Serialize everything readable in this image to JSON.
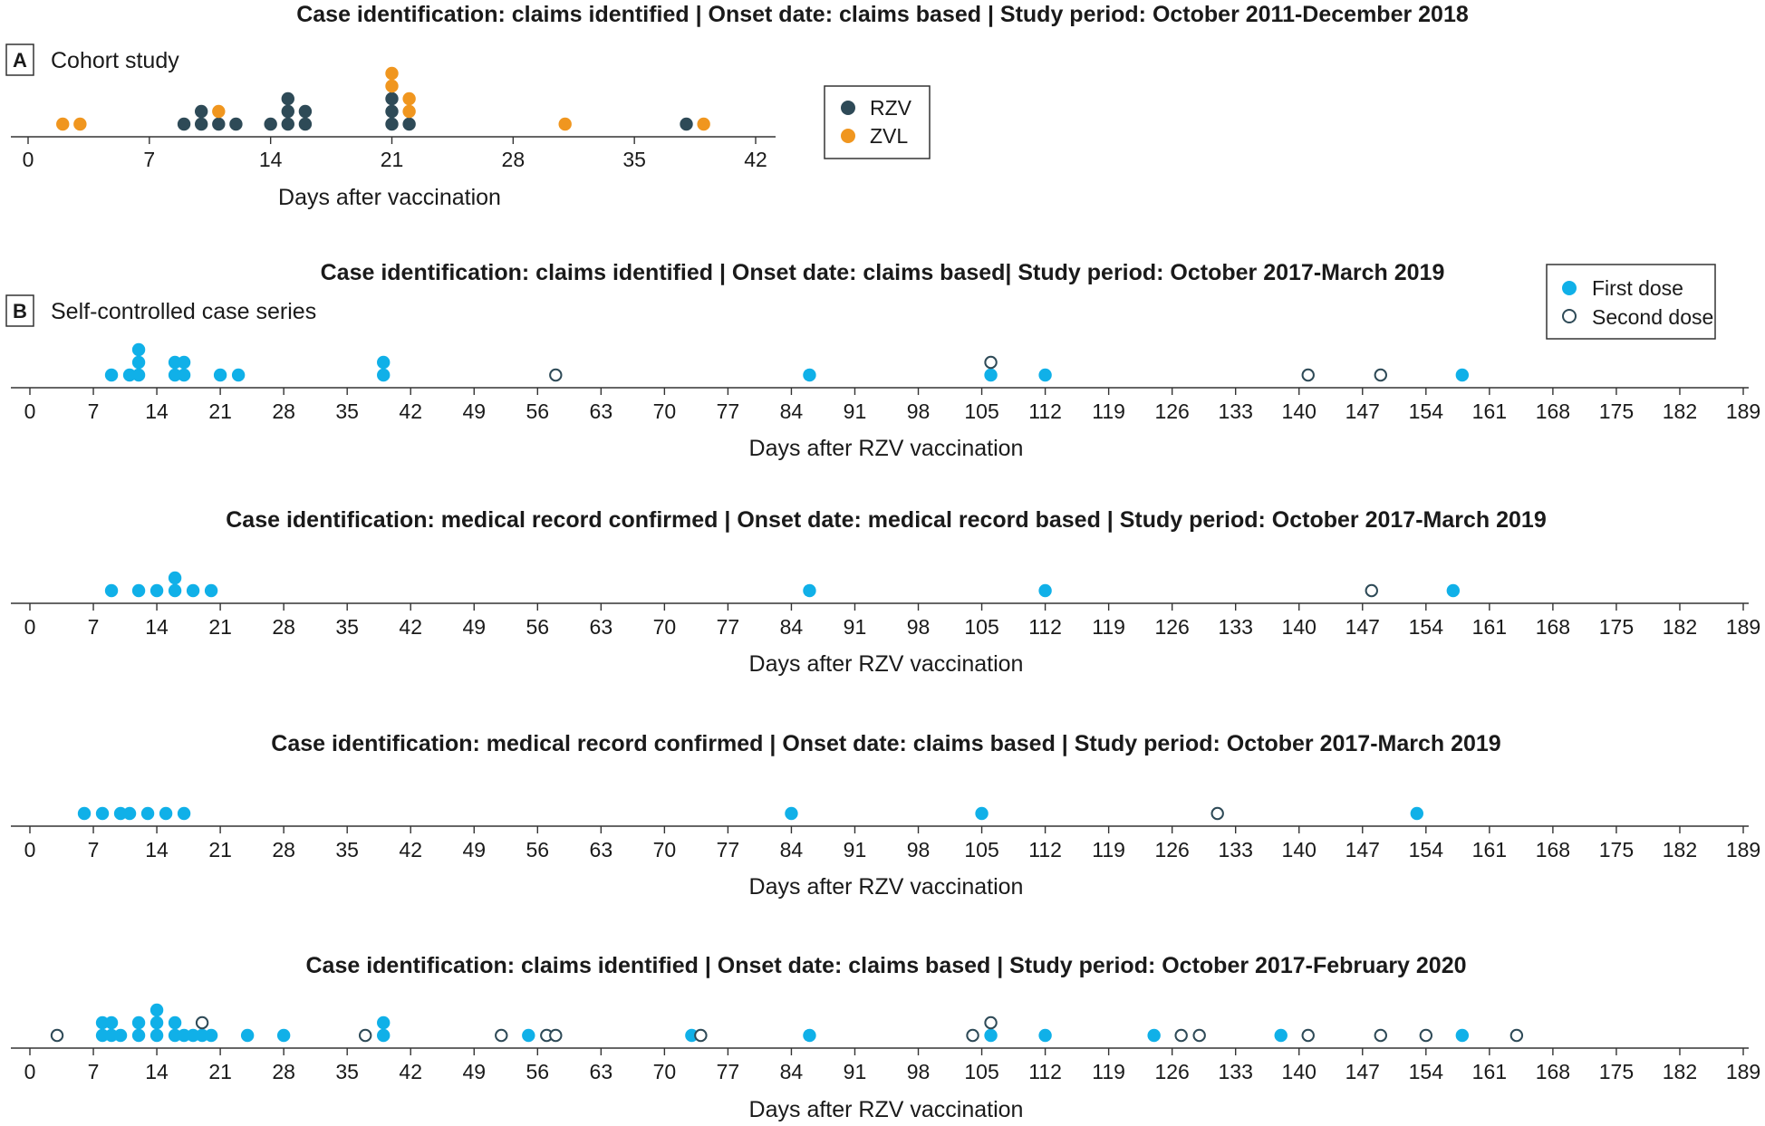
{
  "figure": {
    "colors": {
      "RZV": "#2e4a57",
      "ZVL": "#f0961f",
      "first_dose": "#10b0e8",
      "second_dose_stroke": "#2e4a57",
      "axis": "#333333"
    }
  },
  "panel_a": {
    "letter": "A",
    "name": "Cohort study",
    "title": "Case identification: claims identified | Onset date: claims based | Study period: October 2011-December 2018",
    "legend": [
      "RZV",
      "ZVL"
    ]
  },
  "panel_b": {
    "letter": "B",
    "name": "Self-controlled case series",
    "legend": [
      "First dose",
      "Second dose"
    ]
  },
  "chart_data": [
    {
      "type": "scatter",
      "subtype": "dot-plot",
      "title": "Case identification: claims identified | Onset date: claims based | Study period: October 2011-December 2018",
      "xlabel": "Days after vaccination",
      "xlim": [
        0,
        42
      ],
      "xticks": [
        0,
        7,
        14,
        21,
        28,
        35,
        42
      ],
      "series": [
        {
          "name": "RZV",
          "x": [
            9,
            10,
            10,
            11,
            12,
            14,
            15,
            15,
            15,
            16,
            16,
            21,
            21,
            21,
            22,
            38
          ]
        },
        {
          "name": "ZVL",
          "x": [
            2,
            3,
            11,
            21,
            21,
            22,
            22,
            31,
            39
          ]
        }
      ]
    },
    {
      "type": "scatter",
      "subtype": "dot-plot",
      "title": "Case identification: claims identified | Onset date: claims based| Study period: October 2017-March 2019",
      "xlabel": "Days after RZV vaccination",
      "xlim": [
        0,
        189
      ],
      "xticks": [
        0,
        7,
        14,
        21,
        28,
        35,
        42,
        49,
        56,
        63,
        70,
        77,
        84,
        91,
        98,
        105,
        112,
        119,
        126,
        133,
        140,
        147,
        154,
        161,
        168,
        175,
        182,
        189
      ],
      "series": [
        {
          "name": "First dose",
          "x": [
            9,
            11,
            12,
            12,
            12,
            16,
            16,
            17,
            17,
            21,
            23,
            39,
            39,
            86,
            106,
            112,
            158
          ]
        },
        {
          "name": "Second dose",
          "x": [
            58,
            106,
            141,
            149
          ]
        }
      ]
    },
    {
      "type": "scatter",
      "subtype": "dot-plot",
      "title": "Case identification: medical record confirmed | Onset date: medical record based | Study period: October 2017-March 2019",
      "xlabel": "Days after RZV vaccination",
      "xlim": [
        0,
        189
      ],
      "xticks": [
        0,
        7,
        14,
        21,
        28,
        35,
        42,
        49,
        56,
        63,
        70,
        77,
        84,
        91,
        98,
        105,
        112,
        119,
        126,
        133,
        140,
        147,
        154,
        161,
        168,
        175,
        182,
        189
      ],
      "series": [
        {
          "name": "First dose",
          "x": [
            9,
            12,
            14,
            16,
            16,
            18,
            20,
            86,
            112,
            157
          ]
        },
        {
          "name": "Second dose",
          "x": [
            148
          ]
        }
      ]
    },
    {
      "type": "scatter",
      "subtype": "dot-plot",
      "title": "Case identification: medical record confirmed | Onset date: claims based | Study period: October 2017-March 2019",
      "xlabel": "Days after RZV vaccination",
      "xlim": [
        0,
        189
      ],
      "xticks": [
        0,
        7,
        14,
        21,
        28,
        35,
        42,
        49,
        56,
        63,
        70,
        77,
        84,
        91,
        98,
        105,
        112,
        119,
        126,
        133,
        140,
        147,
        154,
        161,
        168,
        175,
        182,
        189
      ],
      "series": [
        {
          "name": "First dose",
          "x": [
            6,
            8,
            10,
            11,
            13,
            15,
            17,
            84,
            105,
            153
          ]
        },
        {
          "name": "Second dose",
          "x": [
            131
          ]
        }
      ]
    },
    {
      "type": "scatter",
      "subtype": "dot-plot",
      "title": "Case identification: claims identified | Onset date: claims based | Study period: October 2017-February 2020",
      "xlabel": "Days after RZV vaccination",
      "xlim": [
        0,
        189
      ],
      "xticks": [
        0,
        7,
        14,
        21,
        28,
        35,
        42,
        49,
        56,
        63,
        70,
        77,
        84,
        91,
        98,
        105,
        112,
        119,
        126,
        133,
        140,
        147,
        154,
        161,
        168,
        175,
        182,
        189
      ],
      "series": [
        {
          "name": "First dose",
          "x": [
            8,
            8,
            9,
            9,
            10,
            12,
            12,
            14,
            14,
            14,
            16,
            16,
            17,
            18,
            19,
            20,
            24,
            28,
            39,
            39,
            55,
            73,
            86,
            106,
            112,
            124,
            138,
            158
          ]
        },
        {
          "name": "Second dose",
          "x": [
            3,
            19,
            37,
            52,
            57,
            58,
            74,
            104,
            106,
            127,
            129,
            141,
            149,
            154,
            164
          ]
        }
      ]
    }
  ]
}
